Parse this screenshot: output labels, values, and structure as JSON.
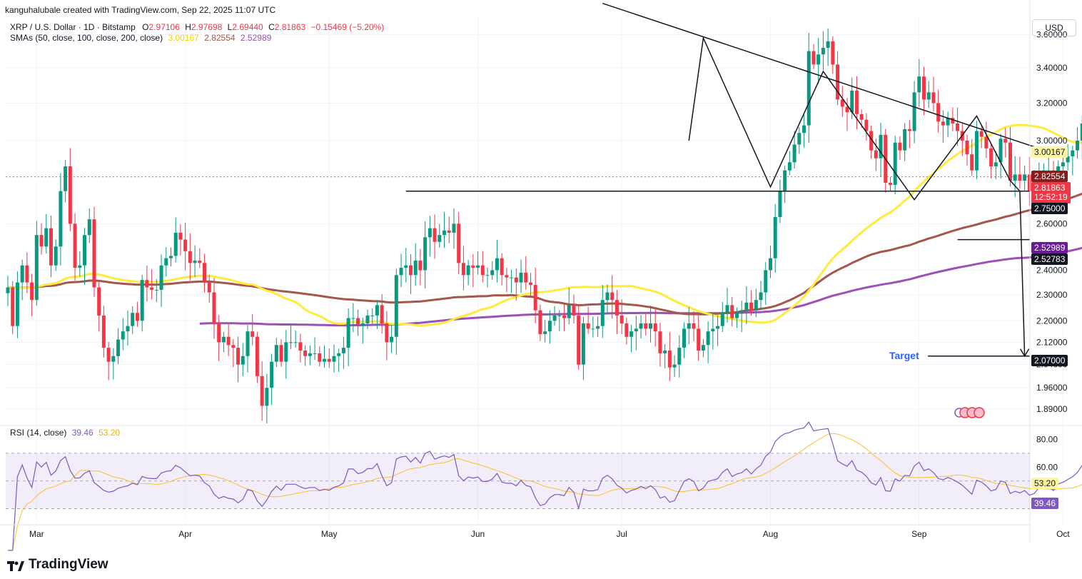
{
  "header": {
    "credit": "kanguhalubale created with TradingView.com, Sep 22, 2025 11:07 UTC",
    "symbol": "XRP / U.S. Dollar · 1D · Bitstamp",
    "o_label": "O",
    "o": "2.97106",
    "h_label": "H",
    "h": "2.97698",
    "l_label": "L",
    "l": "2.69440",
    "c_label": "C",
    "c": "2.81863",
    "change": "−0.15469 (−5.20%)",
    "sma_label": "SMAs (50, close, 100, close, 200, close)",
    "sma50": "3.00167",
    "sma100": "2.82554",
    "sma200": "2.52989"
  },
  "currency_button": "USD",
  "rsi_header": {
    "label": "RSI (14, close)",
    "rsi": "39.46",
    "ma": "53.20"
  },
  "price_tags": {
    "sma50": "3.00167",
    "sma100": "2.82554",
    "last": "2.81863",
    "countdown": "12:52:19",
    "neckline": "2.75000",
    "sma200": "2.52989",
    "level2": "2.52783",
    "target": "2.07000"
  },
  "rsi_tags": {
    "ma": "53.20",
    "rsi": "39.46"
  },
  "annotation": {
    "target_label": "Target"
  },
  "brand": "TradingView",
  "colors": {
    "up": "#089981",
    "down": "#f23645",
    "sma50": "#ffeb3b",
    "sma100": "#a4574c",
    "sma200": "#9c51b6",
    "rsi": "#7e57c2",
    "rsi_ma": "#fbc02d",
    "target": "#2962ff"
  },
  "chart_data": {
    "type": "candlestick",
    "symbol": "XRP / U.S. Dollar",
    "timeframe": "1D",
    "x_ticks": [
      "Mar",
      "Apr",
      "May",
      "Jun",
      "Jul",
      "Aug",
      "Sep",
      "Oct"
    ],
    "y_ticks": [
      3.6,
      3.4,
      3.2,
      3.0,
      2.6,
      2.4,
      2.3,
      2.2,
      2.12,
      2.04,
      1.96,
      1.89
    ],
    "y_tick_labels": [
      "3.60000",
      "3.40000",
      "3.20000",
      "3.00000",
      "2.60000",
      "2.40000",
      "2.30000",
      "2.20000",
      "2.12000",
      "2.04000",
      "1.96000",
      "1.89000"
    ],
    "ylim": [
      1.855,
      3.72
    ],
    "y_scale": "log",
    "start_date": "2025-02-23",
    "end_date": "2025-09-22",
    "closes": [
      2.33,
      2.18,
      2.35,
      2.42,
      2.35,
      2.28,
      2.55,
      2.5,
      2.58,
      2.42,
      2.5,
      2.75,
      2.87,
      2.6,
      2.41,
      2.42,
      2.55,
      2.62,
      2.33,
      2.22,
      2.1,
      2.05,
      2.07,
      2.13,
      2.16,
      2.18,
      2.23,
      2.2,
      2.36,
      2.33,
      2.32,
      2.32,
      2.42,
      2.45,
      2.46,
      2.56,
      2.53,
      2.48,
      2.43,
      2.44,
      2.43,
      2.35,
      2.31,
      2.19,
      2.12,
      2.14,
      2.11,
      2.1,
      2.04,
      2.07,
      2.16,
      2.14,
      2.0,
      1.9,
      1.96,
      2.05,
      2.11,
      2.05,
      2.12,
      2.12,
      2.12,
      2.09,
      2.07,
      2.08,
      2.08,
      2.05,
      2.06,
      2.05,
      2.07,
      2.08,
      2.1,
      2.21,
      2.21,
      2.18,
      2.19,
      2.22,
      2.22,
      2.26,
      2.19,
      2.12,
      2.14,
      2.38,
      2.41,
      2.42,
      2.38,
      2.44,
      2.4,
      2.54,
      2.58,
      2.52,
      2.55,
      2.57,
      2.56,
      2.6,
      2.43,
      2.38,
      2.42,
      2.41,
      2.42,
      2.38,
      2.38,
      2.4,
      2.45,
      2.38,
      2.37,
      2.37,
      2.35,
      2.39,
      2.35,
      2.34,
      2.24,
      2.15,
      2.16,
      2.2,
      2.22,
      2.22,
      2.21,
      2.26,
      2.22,
      2.04,
      2.19,
      2.17,
      2.17,
      2.18,
      2.28,
      2.31,
      2.28,
      2.22,
      2.19,
      2.14,
      2.16,
      2.17,
      2.19,
      2.17,
      2.19,
      2.16,
      2.08,
      2.09,
      2.03,
      2.04,
      2.1,
      2.17,
      2.19,
      2.17,
      2.09,
      2.11,
      2.16,
      2.17,
      2.18,
      2.23,
      2.26,
      2.21,
      2.23,
      2.24,
      2.27,
      2.24,
      2.28,
      2.31,
      2.4,
      2.45,
      2.63,
      2.75,
      2.85,
      2.89,
      2.98,
      3.04,
      3.08,
      3.5,
      3.42,
      3.48,
      3.52,
      3.56,
      3.42,
      3.22,
      3.18,
      3.15,
      3.27,
      3.14,
      3.11,
      3.05,
      2.95,
      2.91,
      3.03,
      2.79,
      2.78,
      2.99,
      2.95,
      3.06,
      3.05,
      3.26,
      3.35,
      3.22,
      3.26,
      3.2,
      3.1,
      3.08,
      3.12,
      3.09,
      3.05,
      3.0,
      2.93,
      2.85,
      3.05,
      3.02,
      2.96,
      2.87,
      2.89,
      3.01,
      2.99,
      2.8,
      2.83,
      2.8,
      2.83,
      2.75,
      2.77,
      2.84,
      2.85,
      2.85,
      2.8,
      2.87,
      2.89,
      2.92,
      2.95,
      3.0,
      3.09,
      3.12,
      3.08,
      3.09,
      3.02,
      3.03,
      3.01,
      3.02,
      3.01,
      2.97,
      2.82
    ],
    "sma50_last": 3.00167,
    "sma100_last": 2.82554,
    "sma200_last": 2.52989,
    "pattern_price_levels": [
      2.75,
      2.07
    ],
    "rsi": {
      "period": 14,
      "ylim": [
        20,
        90
      ],
      "y_ticks": [
        80,
        60
      ],
      "upper_band": 70,
      "middle_band": 50,
      "lower_band": 30,
      "last_rsi": 39.46,
      "last_ma": 53.2
    }
  }
}
